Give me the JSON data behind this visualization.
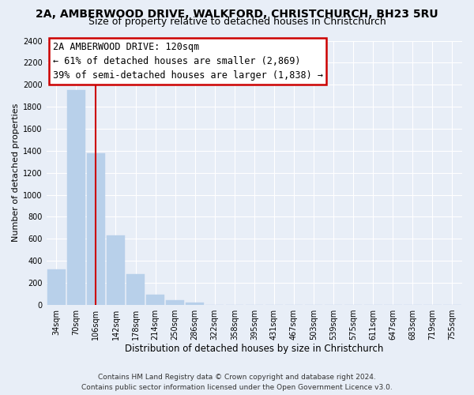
{
  "title": "2A, AMBERWOOD DRIVE, WALKFORD, CHRISTCHURCH, BH23 5RU",
  "subtitle": "Size of property relative to detached houses in Christchurch",
  "xlabel": "Distribution of detached houses by size in Christchurch",
  "ylabel": "Number of detached properties",
  "footer_line1": "Contains HM Land Registry data © Crown copyright and database right 2024.",
  "footer_line2": "Contains public sector information licensed under the Open Government Licence v3.0.",
  "bar_labels": [
    "34sqm",
    "70sqm",
    "106sqm",
    "142sqm",
    "178sqm",
    "214sqm",
    "250sqm",
    "286sqm",
    "322sqm",
    "358sqm",
    "395sqm",
    "431sqm",
    "467sqm",
    "503sqm",
    "539sqm",
    "575sqm",
    "611sqm",
    "647sqm",
    "683sqm",
    "719sqm",
    "755sqm"
  ],
  "bar_values": [
    320,
    1950,
    1380,
    630,
    280,
    95,
    45,
    20,
    0,
    0,
    0,
    0,
    0,
    0,
    0,
    0,
    0,
    0,
    0,
    0,
    0
  ],
  "bar_color": "#b8d0ea",
  "bar_edge_color": "#b8d0ea",
  "vline_index": 2,
  "vline_color": "#cc0000",
  "annotation_title": "2A AMBERWOOD DRIVE: 120sqm",
  "annotation_line1": "← 61% of detached houses are smaller (2,869)",
  "annotation_line2": "39% of semi-detached houses are larger (1,838) →",
  "annotation_box_color": "white",
  "annotation_box_edge": "#cc0000",
  "ylim": [
    0,
    2400
  ],
  "yticks": [
    0,
    200,
    400,
    600,
    800,
    1000,
    1200,
    1400,
    1600,
    1800,
    2000,
    2200,
    2400
  ],
  "bg_color": "#e8eef7",
  "plot_bg_color": "#e8eef7",
  "grid_color": "white",
  "title_fontsize": 10,
  "subtitle_fontsize": 9,
  "xlabel_fontsize": 8.5,
  "ylabel_fontsize": 8,
  "tick_fontsize": 7,
  "footer_fontsize": 6.5,
  "annotation_fontsize": 8.5
}
